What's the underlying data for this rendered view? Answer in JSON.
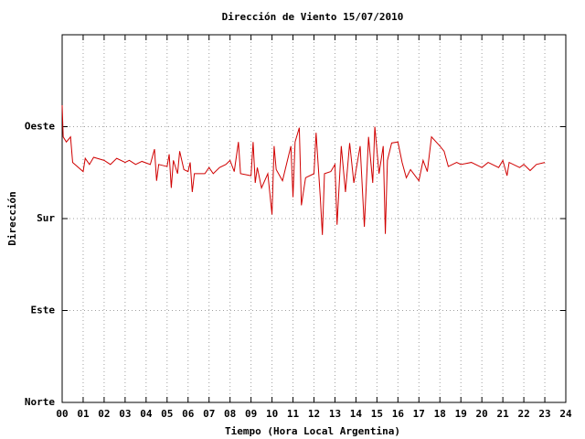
{
  "chart_data": {
    "type": "line",
    "title": "Dirección de Viento 15/07/2010",
    "x_label": "Tiempo (Hora Local Argentina)",
    "y_label": "Dirección",
    "color": "#d00000",
    "grid": true,
    "xlim": [
      0,
      24
    ],
    "ylim": [
      0,
      360
    ],
    "xticks": [
      {
        "value": 0,
        "label": "00"
      },
      {
        "value": 1,
        "label": "01"
      },
      {
        "value": 2,
        "label": "02"
      },
      {
        "value": 3,
        "label": "03"
      },
      {
        "value": 4,
        "label": "04"
      },
      {
        "value": 5,
        "label": "05"
      },
      {
        "value": 6,
        "label": "06"
      },
      {
        "value": 7,
        "label": "07"
      },
      {
        "value": 8,
        "label": "08"
      },
      {
        "value": 9,
        "label": "09"
      },
      10,
      11,
      12,
      13,
      14,
      15,
      16,
      17,
      18,
      19,
      20,
      21,
      22,
      23,
      24
    ],
    "yticks": [
      {
        "value": 0,
        "label": "Norte"
      },
      {
        "value": 90,
        "label": "Este"
      },
      {
        "value": 180,
        "label": "Sur"
      },
      {
        "value": 270,
        "label": "Oeste"
      },
      {
        "value": 360,
        "label": ""
      }
    ],
    "x": [
      0.0,
      0.05,
      0.2,
      0.4,
      0.5,
      1.0,
      1.1,
      1.3,
      1.5,
      2.0,
      2.3,
      2.6,
      3.0,
      3.2,
      3.5,
      3.8,
      4.2,
      4.4,
      4.5,
      4.6,
      5.0,
      5.1,
      5.2,
      5.3,
      5.5,
      5.6,
      5.8,
      6.0,
      6.1,
      6.2,
      6.3,
      6.8,
      7.0,
      7.2,
      7.5,
      7.8,
      8.0,
      8.2,
      8.4,
      8.5,
      9.0,
      9.1,
      9.2,
      9.3,
      9.5,
      9.8,
      10.0,
      10.1,
      10.2,
      10.5,
      10.9,
      11.0,
      11.1,
      11.3,
      11.4,
      11.6,
      12.0,
      12.1,
      12.3,
      12.4,
      12.5,
      12.8,
      13.0,
      13.1,
      13.3,
      13.5,
      13.7,
      13.9,
      14.2,
      14.4,
      14.6,
      14.8,
      14.9,
      15.1,
      15.3,
      15.4,
      15.5,
      15.7,
      16.0,
      16.2,
      16.4,
      16.6,
      17.0,
      17.2,
      17.4,
      17.6,
      18.0,
      18.2,
      18.4,
      18.8,
      19.0,
      19.5,
      20.0,
      20.3,
      20.8,
      21.0,
      21.2,
      21.3,
      21.8,
      22.0,
      22.3,
      22.6,
      23.0
    ],
    "values": [
      291,
      260,
      255,
      260,
      235,
      226,
      239,
      233,
      240,
      237,
      233,
      239,
      235,
      237,
      233,
      236,
      233,
      248,
      217,
      233,
      231,
      243,
      210,
      237,
      224,
      246,
      228,
      226,
      235,
      206,
      224,
      224,
      230,
      224,
      230,
      233,
      237,
      226,
      255,
      224,
      222,
      255,
      215,
      230,
      210,
      224,
      184,
      251,
      228,
      217,
      251,
      201,
      255,
      269,
      193,
      220,
      224,
      264,
      201,
      164,
      224,
      226,
      233,
      174,
      251,
      206,
      254,
      215,
      251,
      172,
      260,
      215,
      270,
      224,
      251,
      165,
      237,
      254,
      255,
      235,
      220,
      228,
      217,
      237,
      226,
      260,
      251,
      246,
      231,
      235,
      233,
      235,
      230,
      235,
      230,
      237,
      222,
      235,
      230,
      233,
      227,
      233,
      235
    ]
  }
}
